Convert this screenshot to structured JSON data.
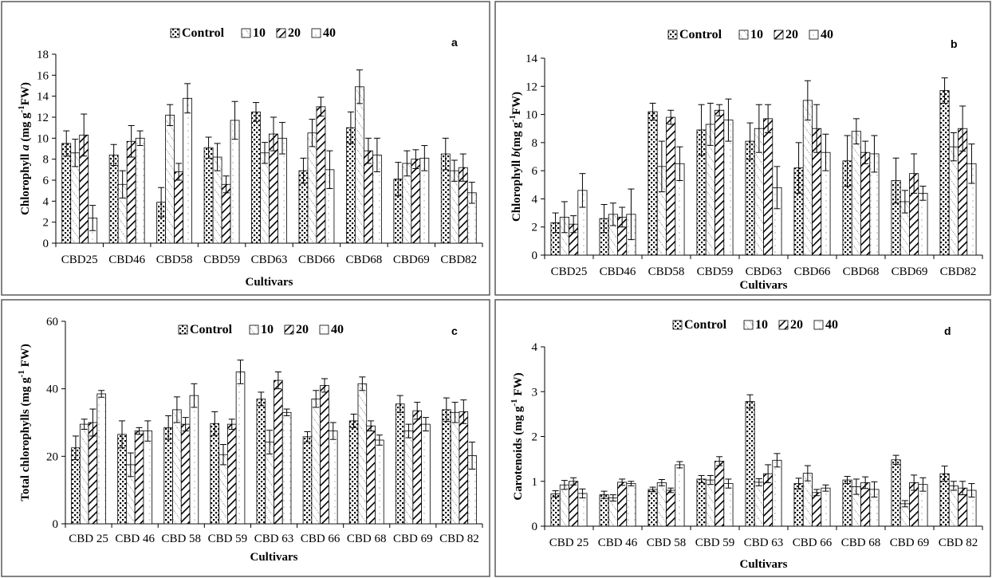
{
  "legend": [
    "Control",
    "10",
    "20",
    "40"
  ],
  "chart_data": [
    {
      "type": "bar",
      "panel_label": "a",
      "ylabel_main": "Chlorophyll ",
      "ylabel_italic": "a",
      "ylabel_unit": " (mg g",
      "ylabel_sup": "-1",
      "ylabel_end": "FW)",
      "xlabel": "Cultivars",
      "ylim": [
        0,
        18
      ],
      "yticks": [
        0,
        2,
        4,
        6,
        8,
        10,
        12,
        14,
        16,
        18
      ],
      "categories": [
        "CBD25",
        "CBD46",
        "CBD58",
        "CBD59",
        "CBD63",
        "CBD66",
        "CBD68",
        "CBD69",
        "CBD82"
      ],
      "series": [
        {
          "name": "Control",
          "values": [
            9.5,
            8.4,
            3.9,
            9.1,
            12.5,
            6.9,
            11.0,
            6.1,
            8.5
          ],
          "errors": [
            1.2,
            1.0,
            1.4,
            1.0,
            0.9,
            1.2,
            1.5,
            1.6,
            1.5
          ]
        },
        {
          "name": "10",
          "values": [
            8.6,
            5.6,
            12.2,
            8.2,
            8.6,
            10.5,
            14.9,
            7.6,
            6.9
          ],
          "errors": [
            1.3,
            1.3,
            1.0,
            1.3,
            1.0,
            1.3,
            1.6,
            1.2,
            1.0
          ]
        },
        {
          "name": "20",
          "values": [
            10.3,
            9.7,
            6.8,
            5.6,
            10.4,
            13.0,
            8.8,
            8.0,
            7.2
          ],
          "errors": [
            2.0,
            1.5,
            0.8,
            0.8,
            1.6,
            0.9,
            1.2,
            0.9,
            1.3
          ]
        },
        {
          "name": "40",
          "values": [
            2.4,
            10.0,
            13.8,
            11.7,
            10.0,
            7.0,
            8.4,
            8.1,
            4.8
          ],
          "errors": [
            1.2,
            0.7,
            1.4,
            1.8,
            1.5,
            1.8,
            1.6,
            1.2,
            1.0
          ]
        }
      ]
    },
    {
      "type": "bar",
      "panel_label": "b",
      "ylabel_main": "Chlorophyll ",
      "ylabel_italic": "b",
      "ylabel_unit": "(mg g",
      "ylabel_sup": "-1",
      "ylabel_end": "FW)",
      "xlabel": "Cultivars",
      "ylim": [
        0,
        14
      ],
      "yticks": [
        0,
        2,
        4,
        6,
        8,
        10,
        12,
        14
      ],
      "categories": [
        "CBD25",
        "CBD46",
        "CBD58",
        "CBD59",
        "CBD63",
        "CBD66",
        "CBD68",
        "CBD69",
        "CBD82"
      ],
      "series": [
        {
          "name": "Control",
          "values": [
            2.3,
            2.6,
            10.2,
            8.9,
            8.1,
            6.2,
            6.7,
            5.3,
            11.7
          ],
          "errors": [
            0.7,
            1.0,
            0.6,
            1.8,
            1.3,
            1.8,
            1.8,
            1.6,
            0.9
          ]
        },
        {
          "name": "10",
          "values": [
            2.7,
            2.9,
            6.3,
            9.3,
            9.0,
            11.0,
            8.8,
            3.8,
            7.7
          ],
          "errors": [
            1.1,
            0.8,
            1.8,
            1.5,
            1.7,
            1.4,
            0.9,
            0.8,
            1.0
          ]
        },
        {
          "name": "20",
          "values": [
            2.2,
            2.7,
            9.8,
            10.3,
            9.7,
            9.0,
            7.3,
            5.8,
            9.0
          ],
          "errors": [
            0.6,
            0.7,
            0.5,
            0.4,
            1.0,
            1.7,
            0.8,
            1.4,
            1.6
          ]
        },
        {
          "name": "40",
          "values": [
            4.6,
            2.9,
            6.5,
            9.6,
            4.8,
            7.3,
            7.2,
            4.4,
            6.5
          ],
          "errors": [
            1.2,
            1.8,
            1.2,
            1.5,
            1.5,
            1.3,
            1.3,
            0.5,
            1.4
          ]
        }
      ]
    },
    {
      "type": "bar",
      "panel_label": "c",
      "ylabel_main": "Total chlorophylls (mg g",
      "ylabel_italic": "",
      "ylabel_unit": "",
      "ylabel_sup": "-1",
      "ylabel_end": " FW)",
      "xlabel": "Cultivars",
      "ylim": [
        0,
        60
      ],
      "yticks": [
        0,
        20,
        40,
        60
      ],
      "categories": [
        "CBD 25",
        "CBD 46",
        "CBD 58",
        "CBD 59",
        "CBD 63",
        "CBD 66",
        "CBD 68",
        "CBD 69",
        "CBD 82"
      ],
      "series": [
        {
          "name": "Control",
          "values": [
            22.5,
            26.5,
            28.5,
            29.7,
            37.0,
            25.8,
            30.5,
            35.5,
            33.8
          ],
          "errors": [
            3.5,
            4.0,
            3.5,
            3.5,
            2.0,
            1.5,
            2.0,
            2.5,
            3.5
          ]
        },
        {
          "name": "10",
          "values": [
            29.5,
            17.5,
            33.8,
            20.5,
            24.2,
            37.0,
            41.5,
            27.5,
            33.0
          ],
          "errors": [
            1.5,
            3.5,
            3.8,
            3.0,
            3.5,
            2.5,
            2.0,
            2.0,
            3.0
          ]
        },
        {
          "name": "20",
          "values": [
            30.0,
            27.5,
            29.5,
            29.5,
            42.5,
            41.0,
            29.0,
            33.5,
            33.2
          ],
          "errors": [
            4.0,
            1.0,
            2.0,
            1.5,
            2.5,
            2.0,
            1.5,
            2.5,
            3.5
          ]
        },
        {
          "name": "40",
          "values": [
            38.5,
            27.5,
            38.0,
            45.0,
            33.0,
            27.5,
            24.8,
            29.5,
            20.2
          ],
          "errors": [
            1.0,
            3.0,
            3.5,
            3.5,
            1.0,
            2.5,
            1.5,
            2.0,
            4.0
          ]
        }
      ]
    },
    {
      "type": "bar",
      "panel_label": "d",
      "ylabel_main": "Carotenoids (mg g",
      "ylabel_italic": "",
      "ylabel_unit": "",
      "ylabel_sup": "-1",
      "ylabel_end": " FW)",
      "xlabel": "Cultivars",
      "ylim": [
        0,
        4
      ],
      "yticks": [
        0,
        1,
        2,
        3,
        4
      ],
      "categories": [
        "CBD 25",
        "CBD 46",
        "CBD 58",
        "CBD 59",
        "CBD 63",
        "CBD 66",
        "CBD 68",
        "CBD 69",
        "CBD 82"
      ],
      "series": [
        {
          "name": "Control",
          "values": [
            0.72,
            0.7,
            0.82,
            1.05,
            2.78,
            0.95,
            1.03,
            1.48,
            1.17
          ],
          "errors": [
            0.07,
            0.08,
            0.05,
            0.08,
            0.15,
            0.12,
            0.08,
            0.1,
            0.17
          ]
        },
        {
          "name": "10",
          "values": [
            0.92,
            0.63,
            0.97,
            1.03,
            0.98,
            1.18,
            0.88,
            0.5,
            0.9
          ],
          "errors": [
            0.1,
            0.07,
            0.07,
            0.1,
            0.08,
            0.17,
            0.17,
            0.07,
            0.1
          ]
        },
        {
          "name": "20",
          "values": [
            1.0,
            0.98,
            0.8,
            1.45,
            1.17,
            0.75,
            0.97,
            0.97,
            0.85
          ],
          "errors": [
            0.08,
            0.07,
            0.05,
            0.1,
            0.2,
            0.07,
            0.13,
            0.17,
            0.15
          ]
        },
        {
          "name": "40",
          "values": [
            0.73,
            0.95,
            1.37,
            0.95,
            1.47,
            0.85,
            0.82,
            0.93,
            0.8
          ],
          "errors": [
            0.1,
            0.05,
            0.07,
            0.1,
            0.15,
            0.07,
            0.17,
            0.15,
            0.15
          ]
        }
      ]
    }
  ]
}
